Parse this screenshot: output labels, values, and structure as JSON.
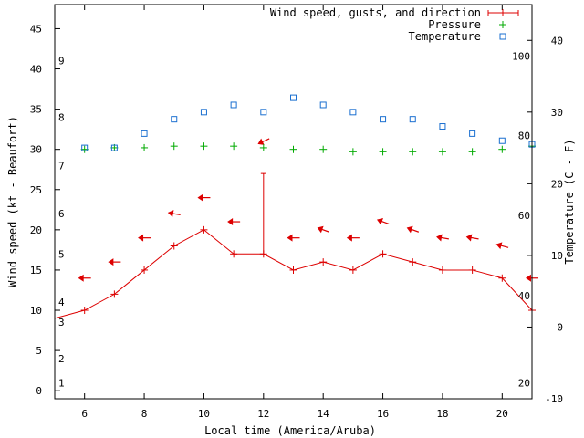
{
  "chart_data": {
    "type": "line",
    "xlabel": "Local time (America/Aruba)",
    "ylabel_left": "Wind speed (kt - Beaufort)",
    "ylabel_right": "Temperature (C - F)",
    "xlim": [
      5,
      21
    ],
    "x_ticks": [
      6,
      8,
      10,
      12,
      14,
      16,
      18,
      20
    ],
    "ylim_left": [
      -1,
      48
    ],
    "y_ticks_left": [
      0,
      5,
      10,
      15,
      20,
      25,
      30,
      35,
      40,
      45
    ],
    "ylim_right_c": [
      -10,
      45
    ],
    "y_ticks_right_c": [
      -10,
      0,
      10,
      20,
      30,
      40
    ],
    "fahrenheit_labels": [
      {
        "label": "20",
        "c": -7.8
      },
      {
        "label": "40",
        "c": 4.4
      },
      {
        "label": "60",
        "c": 15.6
      },
      {
        "label": "80",
        "c": 26.7
      },
      {
        "label": "100",
        "c": 37.8
      }
    ],
    "beaufort_labels": [
      {
        "label": "1",
        "kt": 1
      },
      {
        "label": "2",
        "kt": 4
      },
      {
        "label": "3",
        "kt": 8.5
      },
      {
        "label": "4",
        "kt": 11
      },
      {
        "label": "5",
        "kt": 17
      },
      {
        "label": "6",
        "kt": 22
      },
      {
        "label": "7",
        "kt": 28
      },
      {
        "label": "8",
        "kt": 34
      },
      {
        "label": "9",
        "kt": 41
      }
    ],
    "legend": {
      "position": "top-right",
      "entries": [
        "Wind speed, gusts, and direction",
        "Pressure",
        "Temperature"
      ]
    },
    "series": [
      {
        "name": "Wind speed, gusts, and direction",
        "color": "#dd0000",
        "x": [
          5,
          6,
          7,
          8,
          9,
          10,
          11,
          12,
          13,
          14,
          15,
          16,
          17,
          18,
          19,
          20,
          21
        ],
        "values": [
          9,
          10,
          12,
          15,
          18,
          20,
          17,
          17,
          15,
          16,
          15,
          17,
          16,
          15,
          15,
          14,
          10
        ],
        "gusts": [
          {
            "x": 12,
            "y": 27
          }
        ],
        "direction_arrows": [
          {
            "x": 6,
            "y": 14,
            "angle": 0
          },
          {
            "x": 7,
            "y": 16,
            "angle": 0
          },
          {
            "x": 8,
            "y": 19,
            "angle": 0
          },
          {
            "x": 9,
            "y": 22,
            "angle": 10
          },
          {
            "x": 10,
            "y": 24,
            "angle": 0
          },
          {
            "x": 11,
            "y": 21,
            "angle": 0
          },
          {
            "x": 12,
            "y": 31,
            "angle": -25
          },
          {
            "x": 13,
            "y": 19,
            "angle": 0
          },
          {
            "x": 14,
            "y": 20,
            "angle": 20
          },
          {
            "x": 15,
            "y": 19,
            "angle": 0
          },
          {
            "x": 16,
            "y": 21,
            "angle": 20
          },
          {
            "x": 17,
            "y": 20,
            "angle": 20
          },
          {
            "x": 18,
            "y": 19,
            "angle": 10
          },
          {
            "x": 19,
            "y": 19,
            "angle": 10
          },
          {
            "x": 20,
            "y": 18,
            "angle": 15
          },
          {
            "x": 21,
            "y": 14,
            "angle": 0
          }
        ]
      },
      {
        "name": "Pressure",
        "color": "#00aa00",
        "x": [
          6,
          7,
          8,
          9,
          10,
          11,
          12,
          13,
          14,
          15,
          16,
          17,
          18,
          19,
          20,
          21
        ],
        "values": [
          30,
          30.2,
          30.2,
          30.4,
          30.4,
          30.4,
          30.2,
          30,
          30,
          29.7,
          29.7,
          29.7,
          29.7,
          29.7,
          30,
          30.4
        ]
      },
      {
        "name": "Temperature",
        "color": "#1a6fd0",
        "x": [
          6,
          7,
          8,
          9,
          10,
          11,
          12,
          13,
          14,
          15,
          16,
          17,
          18,
          19,
          20,
          21
        ],
        "values": [
          25,
          25,
          27,
          29,
          30,
          31,
          30,
          32,
          31,
          30,
          29,
          29,
          28,
          27,
          26,
          25.5
        ]
      }
    ]
  }
}
